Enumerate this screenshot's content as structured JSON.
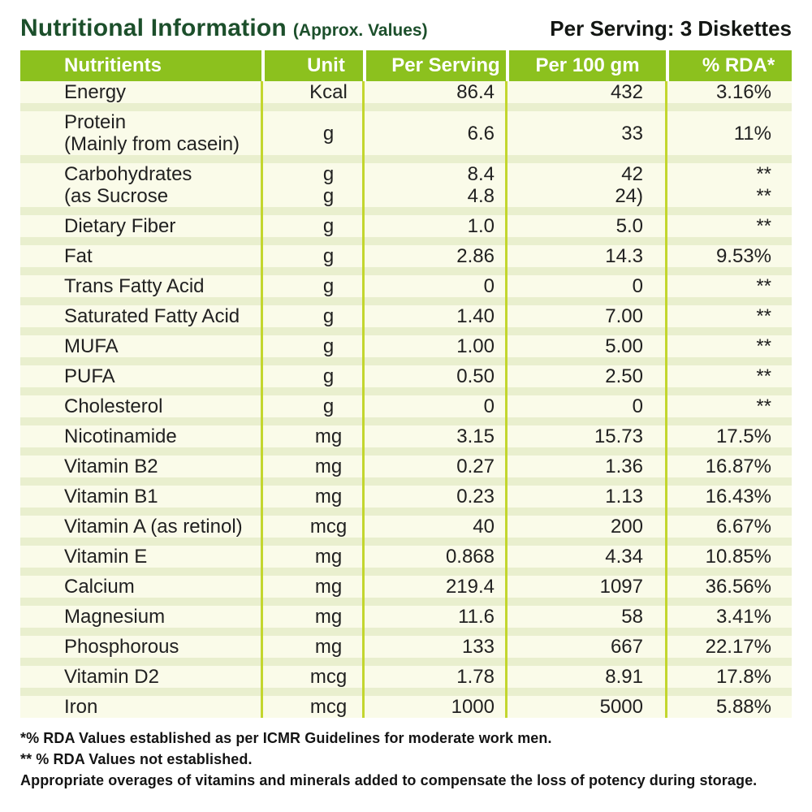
{
  "title": {
    "main": "Nutritional Information",
    "sub": "(Approx. Values)",
    "serving": "Per Serving: 3 Diskettes"
  },
  "table": {
    "headers": [
      "Nutritients",
      "Unit",
      "Per Serving",
      "Per 100 gm",
      "% RDA*"
    ],
    "rows": [
      {
        "name": [
          "Energy"
        ],
        "unit": [
          "Kcal"
        ],
        "per_serving": [
          "86.4"
        ],
        "per_100gm": [
          "432"
        ],
        "rda": [
          "3.16%"
        ]
      },
      {
        "name": [
          "Protein",
          "(Mainly from casein)"
        ],
        "unit": [
          "g"
        ],
        "per_serving": [
          "6.6"
        ],
        "per_100gm": [
          "33"
        ],
        "rda": [
          "11%"
        ]
      },
      {
        "name": [
          "Carbohydrates",
          "(as Sucrose"
        ],
        "unit": [
          "g",
          "g"
        ],
        "per_serving": [
          "8.4",
          "4.8"
        ],
        "per_100gm": [
          "42",
          "24)"
        ],
        "rda": [
          "**",
          "**"
        ]
      },
      {
        "name": [
          "Dietary Fiber"
        ],
        "unit": [
          "g"
        ],
        "per_serving": [
          "1.0"
        ],
        "per_100gm": [
          "5.0"
        ],
        "rda": [
          "**"
        ]
      },
      {
        "name": [
          "Fat"
        ],
        "unit": [
          "g"
        ],
        "per_serving": [
          "2.86"
        ],
        "per_100gm": [
          "14.3"
        ],
        "rda": [
          "9.53%"
        ]
      },
      {
        "name": [
          "Trans Fatty Acid"
        ],
        "unit": [
          "g"
        ],
        "per_serving": [
          "0"
        ],
        "per_100gm": [
          "0"
        ],
        "rda": [
          "**"
        ]
      },
      {
        "name": [
          "Saturated Fatty Acid"
        ],
        "unit": [
          "g"
        ],
        "per_serving": [
          "1.40"
        ],
        "per_100gm": [
          "7.00"
        ],
        "rda": [
          "**"
        ]
      },
      {
        "name": [
          "MUFA"
        ],
        "unit": [
          "g"
        ],
        "per_serving": [
          "1.00"
        ],
        "per_100gm": [
          "5.00"
        ],
        "rda": [
          "**"
        ]
      },
      {
        "name": [
          "PUFA"
        ],
        "unit": [
          "g"
        ],
        "per_serving": [
          "0.50"
        ],
        "per_100gm": [
          "2.50"
        ],
        "rda": [
          "**"
        ]
      },
      {
        "name": [
          "Cholesterol"
        ],
        "unit": [
          "g"
        ],
        "per_serving": [
          "0"
        ],
        "per_100gm": [
          "0"
        ],
        "rda": [
          "**"
        ]
      },
      {
        "name": [
          "Nicotinamide"
        ],
        "unit": [
          "mg"
        ],
        "per_serving": [
          "3.15"
        ],
        "per_100gm": [
          "15.73"
        ],
        "rda": [
          "17.5%"
        ]
      },
      {
        "name": [
          "Vitamin B2"
        ],
        "unit": [
          "mg"
        ],
        "per_serving": [
          "0.27"
        ],
        "per_100gm": [
          "1.36"
        ],
        "rda": [
          "16.87%"
        ]
      },
      {
        "name": [
          "Vitamin B1"
        ],
        "unit": [
          "mg"
        ],
        "per_serving": [
          "0.23"
        ],
        "per_100gm": [
          "1.13"
        ],
        "rda": [
          "16.43%"
        ]
      },
      {
        "name": [
          "Vitamin A (as retinol)"
        ],
        "unit": [
          "mcg"
        ],
        "per_serving": [
          "40"
        ],
        "per_100gm": [
          "200"
        ],
        "rda": [
          "6.67%"
        ]
      },
      {
        "name": [
          "Vitamin E"
        ],
        "unit": [
          "mg"
        ],
        "per_serving": [
          "0.868"
        ],
        "per_100gm": [
          "4.34"
        ],
        "rda": [
          "10.85%"
        ]
      },
      {
        "name": [
          "Calcium"
        ],
        "unit": [
          "mg"
        ],
        "per_serving": [
          "219.4"
        ],
        "per_100gm": [
          "1097"
        ],
        "rda": [
          "36.56%"
        ]
      },
      {
        "name": [
          "Magnesium"
        ],
        "unit": [
          "mg"
        ],
        "per_serving": [
          "11.6"
        ],
        "per_100gm": [
          "58"
        ],
        "rda": [
          "3.41%"
        ]
      },
      {
        "name": [
          "Phosphorous"
        ],
        "unit": [
          "mg"
        ],
        "per_serving": [
          "133"
        ],
        "per_100gm": [
          "667"
        ],
        "rda": [
          "22.17%"
        ]
      },
      {
        "name": [
          "Vitamin D2"
        ],
        "unit": [
          "mcg"
        ],
        "per_serving": [
          "1.78"
        ],
        "per_100gm": [
          "8.91"
        ],
        "rda": [
          "17.8%"
        ]
      },
      {
        "name": [
          "Iron"
        ],
        "unit": [
          "mcg"
        ],
        "per_serving": [
          "1000"
        ],
        "per_100gm": [
          "5000"
        ],
        "rda": [
          "5.88%"
        ]
      }
    ]
  },
  "footnotes": [
    "*% RDA Values established as per ICMR Guidelines for moderate work men.",
    "** % RDA Values not established.",
    "Appropriate overages of vitamins and minerals added to compensate the loss of potency during storage."
  ],
  "colors": {
    "header_bg": "#8cc11e",
    "column_divider": "#c3d62e",
    "row_bg": "#fafbe9",
    "row_gap_bg": "#e9efce",
    "title_green": "#1c4f2b"
  }
}
